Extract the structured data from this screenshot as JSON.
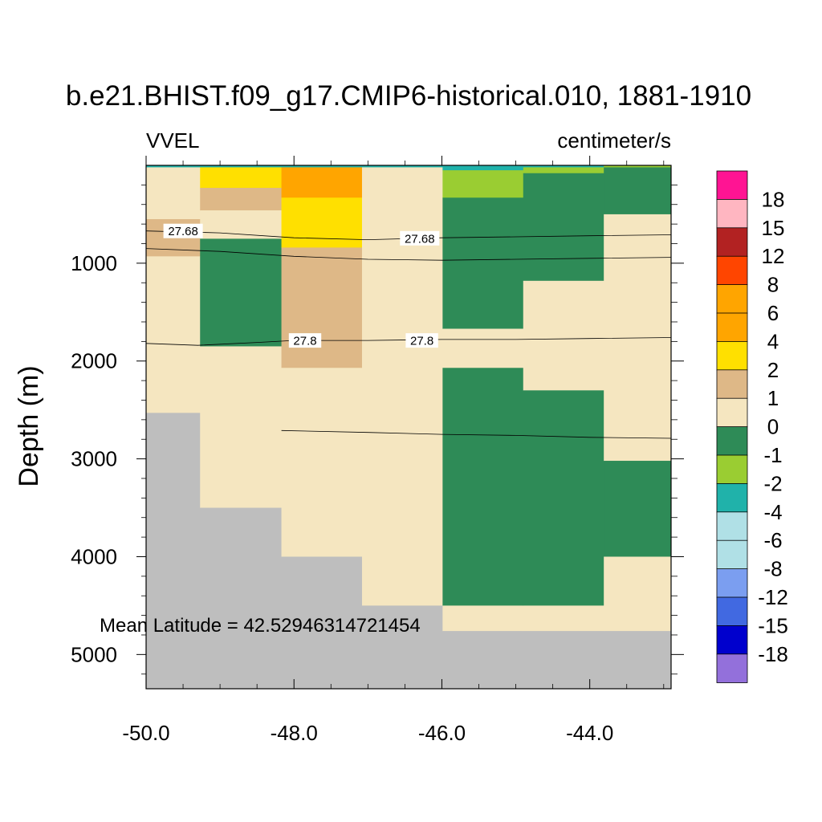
{
  "chart_data": {
    "type": "heatmap",
    "title": "b.e21.BHIST.f09_g17.CMIP6-historical.010, 1881-1910",
    "left_label": "VVEL",
    "right_label": "centimeter/s",
    "ylabel": "Depth (m)",
    "xlabel": "",
    "annotation": "Mean Latitude = 42.52946314721454",
    "xlim": [
      -50.0,
      -42.9
    ],
    "ylim": [
      0,
      5350
    ],
    "y_reversed": true,
    "x_ticks": [
      "-50.0",
      "-48.0",
      "-46.0",
      "-44.0"
    ],
    "x_tick_values": [
      -50.0,
      -48.0,
      -46.0,
      -44.0
    ],
    "y_ticks": [
      "1000",
      "2000",
      "3000",
      "4000",
      "5000"
    ],
    "y_tick_values": [
      1000,
      2000,
      3000,
      4000,
      5000
    ],
    "columns": [
      {
        "x0": -50.0,
        "x1": -49.27,
        "segments": [
          {
            "d0": 0,
            "d1": 20,
            "value": -3
          },
          {
            "d0": 20,
            "d1": 550,
            "value": 0.5
          },
          {
            "d0": 550,
            "d1": 930,
            "value": 1.5
          },
          {
            "d0": 930,
            "d1": 2530,
            "value": 0.5
          },
          {
            "d0": 2530,
            "d1": 5350,
            "value": null
          }
        ]
      },
      {
        "x0": -49.27,
        "x1": -48.17,
        "segments": [
          {
            "d0": 0,
            "d1": 20,
            "value": -3
          },
          {
            "d0": 20,
            "d1": 230,
            "value": 3
          },
          {
            "d0": 230,
            "d1": 460,
            "value": 1.5
          },
          {
            "d0": 460,
            "d1": 750,
            "value": 0.5
          },
          {
            "d0": 750,
            "d1": 1850,
            "value": -0.5
          },
          {
            "d0": 1850,
            "d1": 3500,
            "value": 0.5
          },
          {
            "d0": 3500,
            "d1": 5350,
            "value": null
          }
        ]
      },
      {
        "x0": -48.17,
        "x1": -47.08,
        "segments": [
          {
            "d0": 0,
            "d1": 20,
            "value": -3
          },
          {
            "d0": 20,
            "d1": 330,
            "value": 5
          },
          {
            "d0": 330,
            "d1": 840,
            "value": 3
          },
          {
            "d0": 840,
            "d1": 2070,
            "value": 1.5
          },
          {
            "d0": 2070,
            "d1": 4000,
            "value": 0.5
          },
          {
            "d0": 4000,
            "d1": 5350,
            "value": null
          }
        ]
      },
      {
        "x0": -47.08,
        "x1": -45.99,
        "segments": [
          {
            "d0": 0,
            "d1": 20,
            "value": -3
          },
          {
            "d0": 20,
            "d1": 4500,
            "value": 0.5
          },
          {
            "d0": 4500,
            "d1": 5350,
            "value": null
          }
        ]
      },
      {
        "x0": -45.99,
        "x1": -44.9,
        "segments": [
          {
            "d0": 0,
            "d1": 50,
            "value": -3
          },
          {
            "d0": 50,
            "d1": 330,
            "value": -1.5
          },
          {
            "d0": 330,
            "d1": 1670,
            "value": -0.5
          },
          {
            "d0": 1670,
            "d1": 2070,
            "value": 0.5
          },
          {
            "d0": 2070,
            "d1": 4500,
            "value": -0.5
          },
          {
            "d0": 4500,
            "d1": 4760,
            "value": 0.5
          },
          {
            "d0": 4760,
            "d1": 5350,
            "value": null
          }
        ]
      },
      {
        "x0": -44.9,
        "x1": -43.81,
        "segments": [
          {
            "d0": 0,
            "d1": 20,
            "value": -3
          },
          {
            "d0": 20,
            "d1": 80,
            "value": -1.5
          },
          {
            "d0": 80,
            "d1": 1180,
            "value": -0.5
          },
          {
            "d0": 1180,
            "d1": 2300,
            "value": 0.5
          },
          {
            "d0": 2300,
            "d1": 4500,
            "value": -0.5
          },
          {
            "d0": 4500,
            "d1": 4760,
            "value": 0.5
          },
          {
            "d0": 4760,
            "d1": 5350,
            "value": null
          }
        ]
      },
      {
        "x0": -43.81,
        "x1": -42.9,
        "segments": [
          {
            "d0": 0,
            "d1": 20,
            "value": -1.5
          },
          {
            "d0": 20,
            "d1": 500,
            "value": -0.5
          },
          {
            "d0": 500,
            "d1": 3020,
            "value": 0.5
          },
          {
            "d0": 3020,
            "d1": 4000,
            "value": -0.5
          },
          {
            "d0": 4000,
            "d1": 4760,
            "value": 0.5
          },
          {
            "d0": 4760,
            "d1": 5350,
            "value": null
          }
        ]
      }
    ],
    "missing_color": "#bebebe",
    "contours": [
      {
        "label": "27.68",
        "points": [
          [
            -50.0,
            670
          ],
          [
            -49.0,
            690
          ],
          [
            -48.0,
            740
          ],
          [
            -47.0,
            760
          ],
          [
            -46.0,
            740
          ],
          [
            -45.0,
            730
          ],
          [
            -44.0,
            720
          ],
          [
            -42.9,
            710
          ]
        ],
        "label_positions": [
          [
            -49.5,
            670
          ],
          [
            -46.3,
            745
          ]
        ]
      },
      {
        "label": "",
        "points": [
          [
            -50.0,
            850
          ],
          [
            -49.0,
            880
          ],
          [
            -48.0,
            930
          ],
          [
            -47.0,
            960
          ],
          [
            -46.0,
            970
          ],
          [
            -45.0,
            960
          ],
          [
            -44.0,
            950
          ],
          [
            -42.9,
            940
          ]
        ],
        "label_positions": []
      },
      {
        "label": "27.8",
        "points": [
          [
            -50.0,
            1820
          ],
          [
            -49.3,
            1840
          ],
          [
            -48.5,
            1810
          ],
          [
            -48.0,
            1790
          ],
          [
            -47.0,
            1790
          ],
          [
            -46.0,
            1780
          ],
          [
            -45.0,
            1780
          ],
          [
            -44.0,
            1770
          ],
          [
            -42.9,
            1760
          ]
        ],
        "label_positions": [
          [
            -47.85,
            1790
          ],
          [
            -46.27,
            1790
          ]
        ]
      },
      {
        "label": "",
        "points": [
          [
            -48.17,
            2710
          ],
          [
            -47.0,
            2730
          ],
          [
            -46.0,
            2750
          ],
          [
            -45.0,
            2760
          ],
          [
            -44.0,
            2780
          ],
          [
            -42.9,
            2790
          ]
        ],
        "label_positions": []
      }
    ],
    "colorbar": {
      "labels": [
        "18",
        "15",
        "12",
        "8",
        "6",
        "4",
        "2",
        "1",
        "0",
        "-1",
        "-2",
        "-4",
        "-6",
        "-8",
        "-12",
        "-15",
        "-18"
      ],
      "colors": [
        "#ff1493",
        "#ffb6c1",
        "#b22222",
        "#ff4500",
        "#ffa500",
        "#ffa500",
        "#ffe000",
        "#deb887",
        "#f5e6c0",
        "#2e8b57",
        "#9acd32",
        "#20b2aa",
        "#b0e0e6",
        "#b0e0e6",
        "#7b9ef0",
        "#4169e1",
        "#0000cd",
        "#9370db"
      ],
      "bounds": [
        -18,
        -15,
        -12,
        -8,
        -6,
        -4,
        -2,
        -1,
        0,
        1,
        2,
        4,
        6,
        8,
        12,
        15,
        18
      ]
    }
  }
}
